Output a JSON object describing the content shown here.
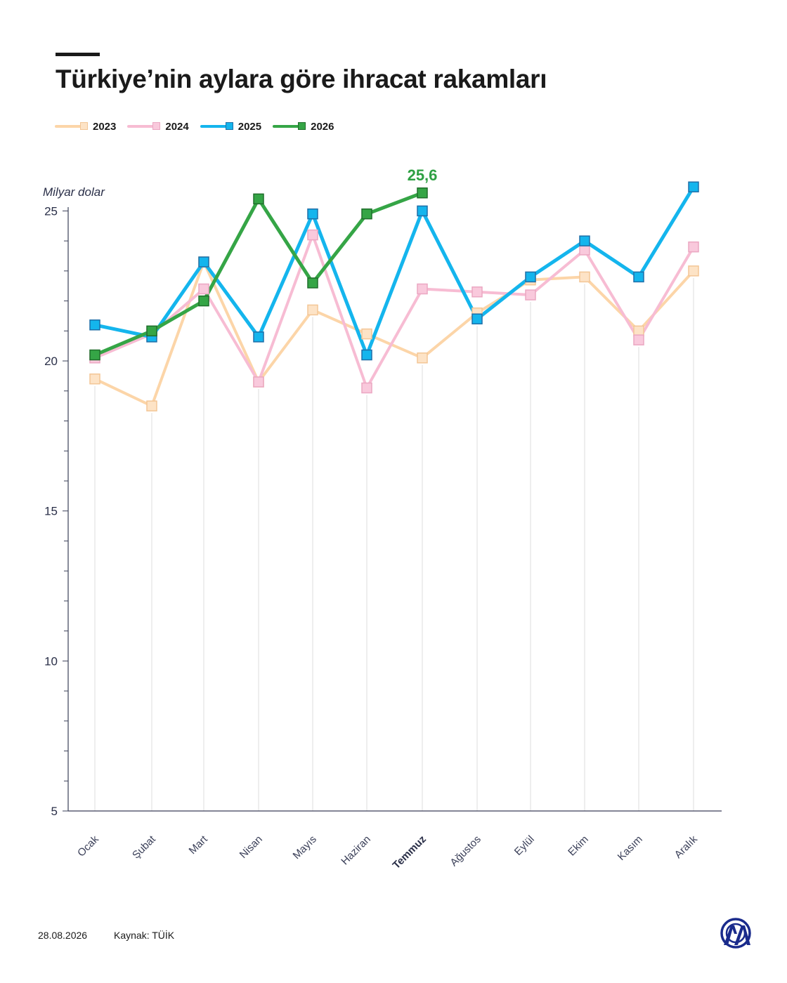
{
  "title": "Türkiye’nin aylara göre ihracat rakamları",
  "footer": {
    "date": "28.08.2026",
    "source": "Kaynak: TÜİK"
  },
  "logo": {
    "text": "AA",
    "color": "#1a2b8c"
  },
  "chart_data": {
    "type": "line",
    "title": "Türkiye’nin aylara göre ihracat rakamları",
    "ylabel": "Milyar dolar",
    "xlabel": "",
    "ylim": [
      5,
      27
    ],
    "yticks": [
      5,
      10,
      15,
      20,
      25
    ],
    "grid": "vertical lines per month",
    "legend_position": "top-left",
    "highlight_category": "Temmuz",
    "annotation": {
      "text": "25,6",
      "series": "2026",
      "category": "Temmuz",
      "color": "#2ea043"
    },
    "categories": [
      "Ocak",
      "Şubat",
      "Mart",
      "Nisan",
      "Mayıs",
      "Haziran",
      "Temmuz",
      "Ağustos",
      "Eylül",
      "Ekim",
      "Kasım",
      "Aralık"
    ],
    "series": [
      {
        "name": "2023",
        "color": "#fcd5a8",
        "values": [
          19.4,
          18.5,
          23.3,
          19.3,
          21.7,
          20.9,
          20.1,
          21.6,
          22.7,
          22.8,
          21.0,
          23.0
        ]
      },
      {
        "name": "2024",
        "color": "#f7bcd3",
        "values": [
          20.1,
          20.9,
          22.4,
          19.3,
          24.2,
          19.1,
          22.4,
          22.3,
          22.2,
          23.7,
          20.7,
          23.8
        ]
      },
      {
        "name": "2025",
        "color": "#14b5ed",
        "values": [
          21.2,
          20.8,
          23.3,
          20.8,
          24.9,
          20.2,
          25.0,
          21.4,
          22.8,
          24.0,
          22.8,
          25.8
        ]
      },
      {
        "name": "2026",
        "color": "#35a546",
        "values": [
          20.2,
          21.0,
          22.0,
          25.4,
          22.6,
          24.9,
          25.6,
          null,
          null,
          null,
          null,
          null
        ]
      }
    ]
  }
}
